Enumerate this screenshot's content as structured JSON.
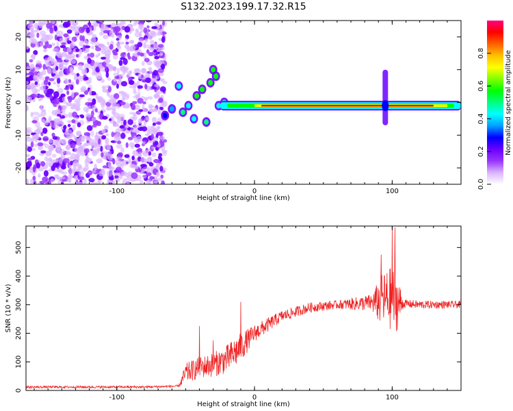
{
  "title": "S132.2023.199.17.32.R15",
  "colors": {
    "trace": "#ee2222",
    "noise": "#8a2be2",
    "frame": "#000000"
  },
  "chart_data": [
    {
      "type": "heatmap",
      "xlabel": "Height of straight line (km)",
      "ylabel": "Frequency (Hz)",
      "xlim": [
        -166,
        150
      ],
      "ylim": [
        -25,
        25
      ],
      "xticks": [
        -100,
        0,
        100
      ],
      "yticks": [
        -20,
        -10,
        0,
        10,
        20
      ],
      "colorbar": {
        "label": "Normalized spectral amplitude",
        "range": [
          0,
          1
        ],
        "ticks": [
          "0.0",
          "0.2",
          "0.4",
          "0.6",
          "0.8"
        ],
        "colormap": [
          "#ffffff",
          "#dab4ff",
          "#9933ff",
          "#6a00ff",
          "#0000ff",
          "#00a0ff",
          "#00ffff",
          "#00ff80",
          "#00ff00",
          "#80ff00",
          "#ffff00",
          "#ffc000",
          "#ff6000",
          "#ff0000",
          "#ff0080"
        ]
      },
      "features": [
        {
          "name": "noise-region",
          "x_range": [
            -166,
            -65
          ],
          "freq_range": [
            -25,
            25
          ],
          "amplitude": "low"
        },
        {
          "name": "onset-blobs",
          "x_range": [
            -68,
            -25
          ],
          "freq_range": [
            -8,
            12
          ],
          "amplitude": "medium"
        },
        {
          "name": "tonal-band",
          "x_range": [
            -25,
            150
          ],
          "freq": -1,
          "amplitude": "high"
        },
        {
          "name": "burst",
          "x": 95,
          "freq_range": [
            -7,
            10
          ],
          "amplitude": "medium"
        }
      ]
    },
    {
      "type": "line",
      "xlabel": "Height of straight line (km)",
      "ylabel": "SNR (10 * v/v)",
      "xlim": [
        -166,
        150
      ],
      "ylim": [
        0,
        575
      ],
      "xticks": [
        -100,
        0,
        100
      ],
      "yticks": [
        0,
        100,
        200,
        300,
        400,
        500
      ],
      "series": [
        {
          "color": "#ee2222",
          "envelope": [
            [
              -166,
              12
            ],
            [
              -120,
              12
            ],
            [
              -80,
              12
            ],
            [
              -55,
              15
            ],
            [
              -50,
              60
            ],
            [
              -40,
              80
            ],
            [
              -30,
              90
            ],
            [
              -20,
              110
            ],
            [
              -10,
              150
            ],
            [
              0,
              200
            ],
            [
              10,
              230
            ],
            [
              20,
              260
            ],
            [
              30,
              275
            ],
            [
              40,
              290
            ],
            [
              60,
              300
            ],
            [
              80,
              305
            ],
            [
              90,
              310
            ],
            [
              95,
              320
            ],
            [
              100,
              320
            ],
            [
              105,
              305
            ],
            [
              120,
              300
            ],
            [
              150,
              300
            ]
          ],
          "noise_amp": [
            [
              -166,
              8
            ],
            [
              -55,
              8
            ],
            [
              -50,
              70
            ],
            [
              -35,
              80
            ],
            [
              -12,
              110
            ],
            [
              0,
              60
            ],
            [
              20,
              40
            ],
            [
              60,
              30
            ],
            [
              85,
              60
            ],
            [
              92,
              180
            ],
            [
              100,
              230
            ],
            [
              104,
              200
            ],
            [
              108,
              30
            ],
            [
              150,
              25
            ]
          ],
          "peaks": [
            [
              -40,
              225
            ],
            [
              -30,
              175
            ],
            [
              -10,
              310
            ],
            [
              92,
              475
            ],
            [
              100,
              575
            ],
            [
              102,
              570
            ]
          ]
        }
      ]
    }
  ]
}
